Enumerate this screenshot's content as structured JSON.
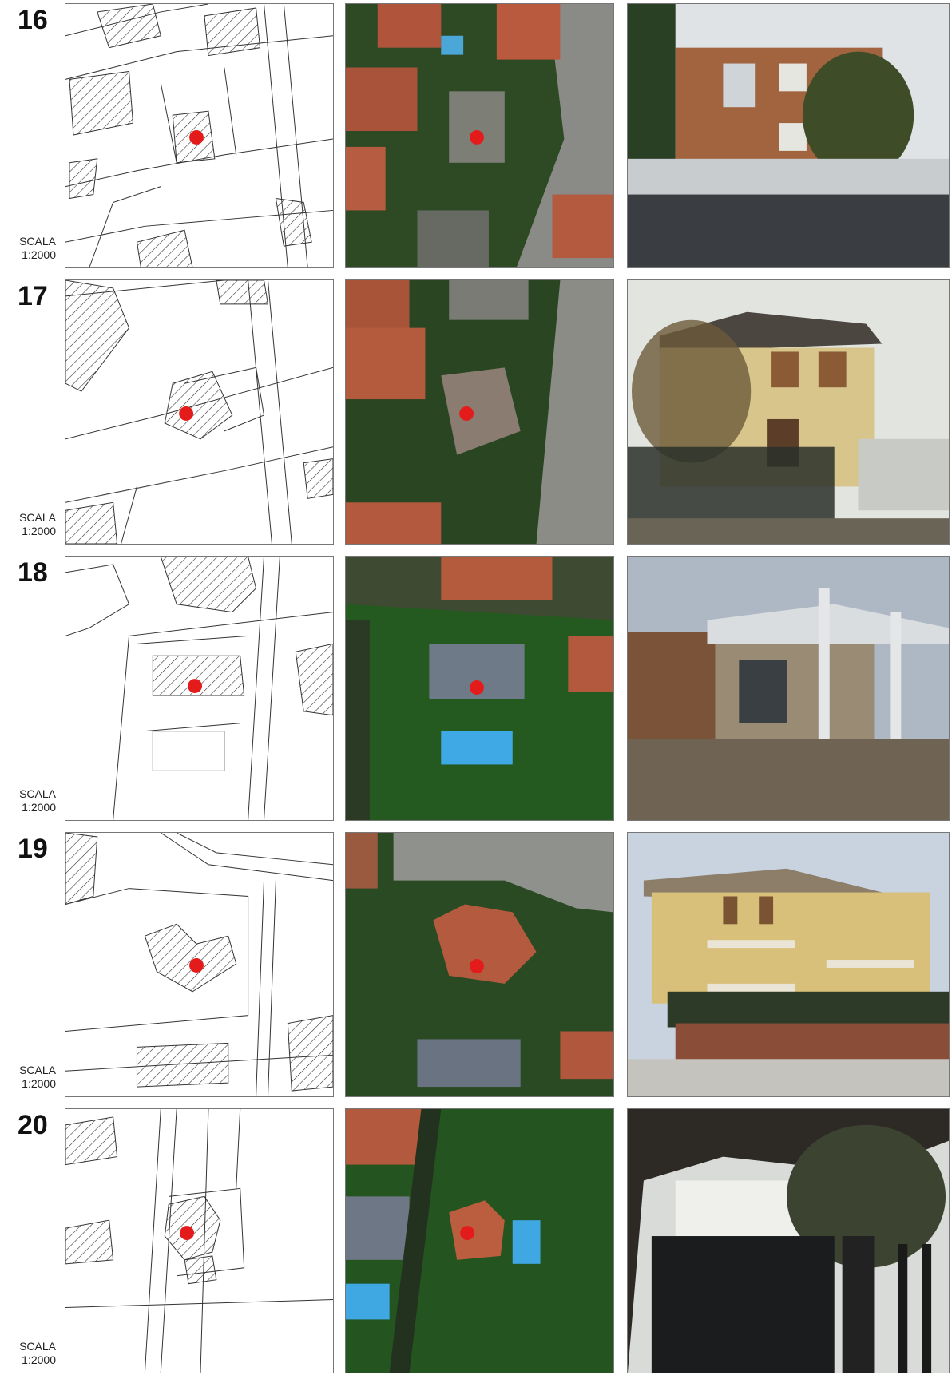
{
  "sheets": [
    {
      "number": "16",
      "scale_label": "SCALA",
      "scale_value": "1:2000",
      "marker_color": "#e41b1b"
    },
    {
      "number": "17",
      "scale_label": "SCALA",
      "scale_value": "1:2000",
      "marker_color": "#e41b1b"
    },
    {
      "number": "18",
      "scale_label": "SCALA",
      "scale_value": "1:2000",
      "marker_color": "#e41b1b"
    },
    {
      "number": "19",
      "scale_label": "SCALA",
      "scale_value": "1:2000",
      "marker_color": "#e41b1b"
    },
    {
      "number": "20",
      "scale_label": "SCALA",
      "scale_value": "1:2000",
      "marker_color": "#e41b1b"
    }
  ]
}
